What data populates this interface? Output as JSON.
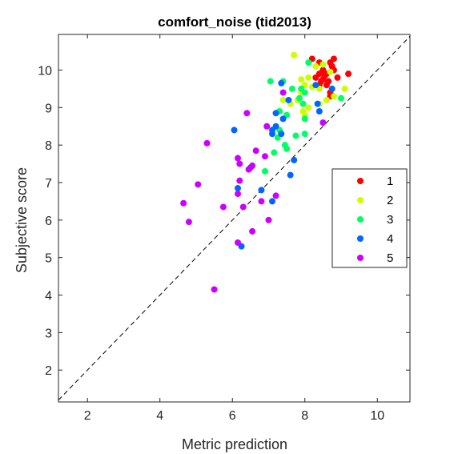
{
  "chart_data": {
    "type": "scatter",
    "title": "comfort_noise (tid2013)",
    "xlabel": "Metric prediction",
    "ylabel": "Subjective score",
    "xlim": [
      1.2,
      10.9
    ],
    "ylim": [
      1.15,
      10.95
    ],
    "xticks": [
      2,
      4,
      6,
      8,
      10
    ],
    "yticks": [
      2,
      3,
      4,
      5,
      6,
      7,
      8,
      9,
      10
    ],
    "grid": false,
    "legend_position": "right-center",
    "reference_line": {
      "style": "dashed",
      "from": [
        1.2,
        1.2
      ],
      "to": [
        10.9,
        10.9
      ]
    },
    "series": [
      {
        "name": "1",
        "color": "#ff0000",
        "points": [
          [
            8.2,
            10.3
          ],
          [
            8.4,
            10.2
          ],
          [
            8.7,
            10.2
          ],
          [
            8.8,
            10.3
          ],
          [
            8.75,
            10.1
          ],
          [
            8.5,
            10.0
          ],
          [
            8.4,
            9.9
          ],
          [
            8.6,
            9.9
          ],
          [
            9.2,
            9.9
          ],
          [
            8.9,
            9.8
          ],
          [
            8.3,
            9.8
          ],
          [
            8.5,
            9.75
          ],
          [
            8.45,
            9.7
          ],
          [
            8.6,
            9.6
          ],
          [
            8.4,
            9.6
          ],
          [
            8.7,
            9.4
          ],
          [
            8.7,
            9.3
          ],
          [
            8.8,
            10.0
          ],
          [
            8.55,
            9.85
          ],
          [
            8.65,
            9.7
          ]
        ]
      },
      {
        "name": "2",
        "color": "#ccff00",
        "points": [
          [
            7.7,
            10.4
          ],
          [
            8.3,
            10.1
          ],
          [
            8.5,
            10.15
          ],
          [
            7.9,
            9.75
          ],
          [
            8.1,
            9.8
          ],
          [
            8.2,
            9.55
          ],
          [
            8.4,
            9.5
          ],
          [
            8.7,
            9.95
          ],
          [
            8.0,
            9.6
          ],
          [
            7.9,
            9.4
          ],
          [
            7.8,
            9.2
          ],
          [
            8.1,
            9.0
          ],
          [
            7.95,
            8.9
          ],
          [
            7.4,
            9.2
          ],
          [
            8.0,
            8.8
          ],
          [
            9.1,
            9.5
          ],
          [
            8.6,
            9.2
          ],
          [
            8.8,
            9.3
          ],
          [
            7.6,
            9.1
          ],
          [
            8.4,
            9.1
          ]
        ]
      },
      {
        "name": "3",
        "color": "#00ff66",
        "points": [
          [
            7.05,
            9.7
          ],
          [
            8.1,
            10.2
          ],
          [
            7.4,
            9.7
          ],
          [
            7.65,
            9.5
          ],
          [
            7.9,
            9.5
          ],
          [
            8.0,
            9.4
          ],
          [
            7.85,
            9.25
          ],
          [
            7.95,
            9.1
          ],
          [
            7.5,
            8.8
          ],
          [
            8.0,
            8.7
          ],
          [
            7.3,
            8.4
          ],
          [
            7.25,
            8.2
          ],
          [
            7.45,
            8.0
          ],
          [
            7.5,
            7.9
          ],
          [
            7.75,
            8.25
          ],
          [
            8.0,
            8.3
          ],
          [
            7.15,
            7.8
          ],
          [
            6.9,
            7.3
          ],
          [
            7.3,
            8.9
          ],
          [
            9.0,
            9.25
          ]
        ]
      },
      {
        "name": "4",
        "color": "#0066ff",
        "points": [
          [
            7.35,
            9.65
          ],
          [
            8.3,
            9.6
          ],
          [
            8.75,
            9.5
          ],
          [
            7.55,
            9.2
          ],
          [
            8.35,
            9.1
          ],
          [
            8.4,
            8.9
          ],
          [
            7.2,
            8.85
          ],
          [
            7.4,
            8.7
          ],
          [
            7.2,
            8.5
          ],
          [
            7.1,
            8.4
          ],
          [
            7.1,
            8.3
          ],
          [
            6.05,
            8.4
          ],
          [
            7.35,
            8.3
          ],
          [
            7.7,
            7.6
          ],
          [
            7.6,
            7.2
          ],
          [
            6.8,
            6.8
          ],
          [
            7.1,
            6.5
          ],
          [
            6.15,
            6.85
          ],
          [
            6.25,
            5.3
          ],
          [
            6.5,
            7.4
          ]
        ]
      },
      {
        "name": "5",
        "color": "#cc00ff",
        "points": [
          [
            7.4,
            9.4
          ],
          [
            8.5,
            8.6
          ],
          [
            6.95,
            8.5
          ],
          [
            6.4,
            8.85
          ],
          [
            5.3,
            8.05
          ],
          [
            6.65,
            7.85
          ],
          [
            6.9,
            7.7
          ],
          [
            6.15,
            7.65
          ],
          [
            6.55,
            7.45
          ],
          [
            6.2,
            7.5
          ],
          [
            6.45,
            7.35
          ],
          [
            6.2,
            7.05
          ],
          [
            6.15,
            6.7
          ],
          [
            6.3,
            6.35
          ],
          [
            5.05,
            6.95
          ],
          [
            4.65,
            6.45
          ],
          [
            5.75,
            6.35
          ],
          [
            4.8,
            5.95
          ],
          [
            6.55,
            5.7
          ],
          [
            6.15,
            5.4
          ],
          [
            5.5,
            4.15
          ],
          [
            7.2,
            6.65
          ],
          [
            6.8,
            6.5
          ],
          [
            7.0,
            6.0
          ]
        ]
      }
    ]
  }
}
